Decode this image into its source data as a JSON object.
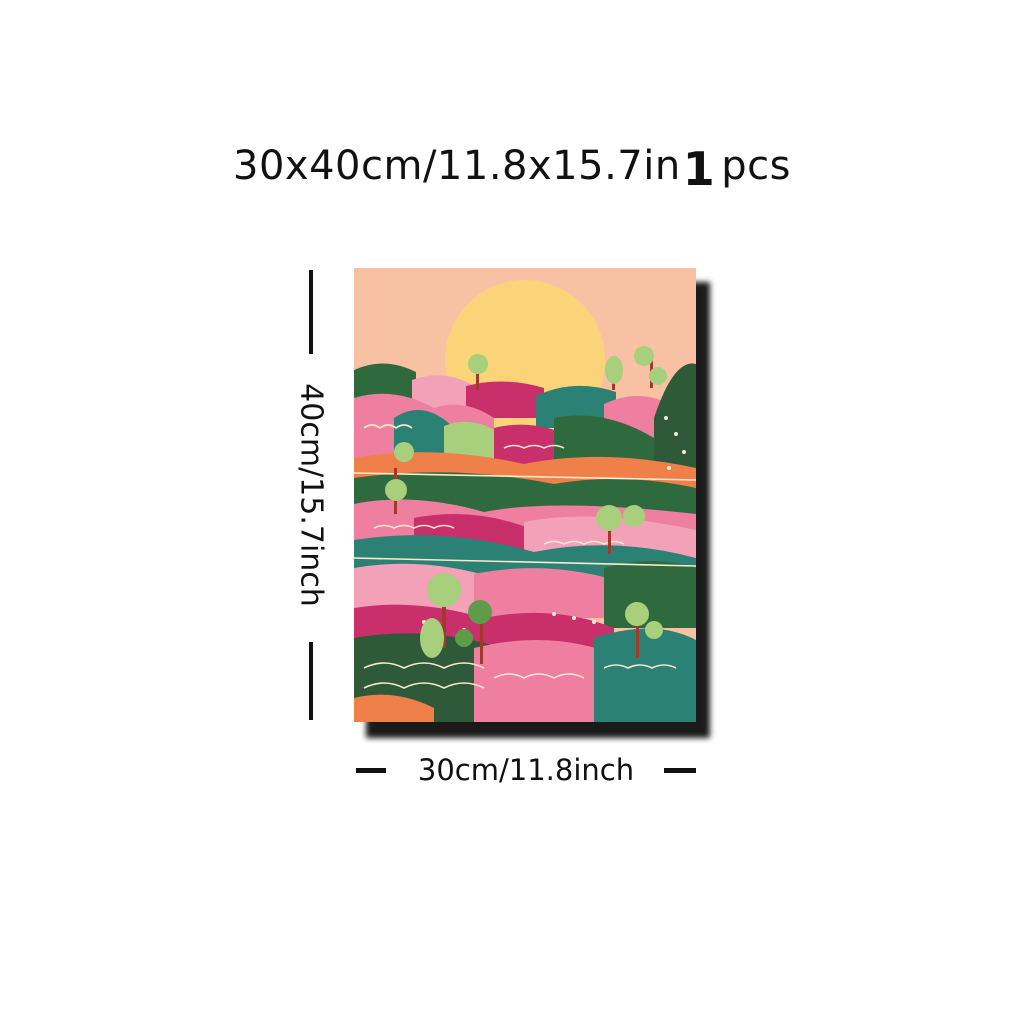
{
  "title": {
    "size_text": "30x40cm/11.8x15.7in",
    "qty_number": "1",
    "qty_unit": "pcs"
  },
  "dimensions": {
    "height_label": "40cm/15.7inch",
    "width_label": "30cm/11.8inch"
  },
  "artwork": {
    "subject": "abstract pink landscape with hills, trees and setting sun",
    "colors": {
      "sky": "#f8c1a4",
      "sun": "#fbd47a",
      "pink": "#ee7fa0",
      "magenta": "#c92f6b",
      "green": "#2f6a3e",
      "teal": "#2b8174",
      "orange": "#f0804a",
      "lightgreen": "#a7cf7c",
      "cream": "#fbe8d0"
    }
  }
}
